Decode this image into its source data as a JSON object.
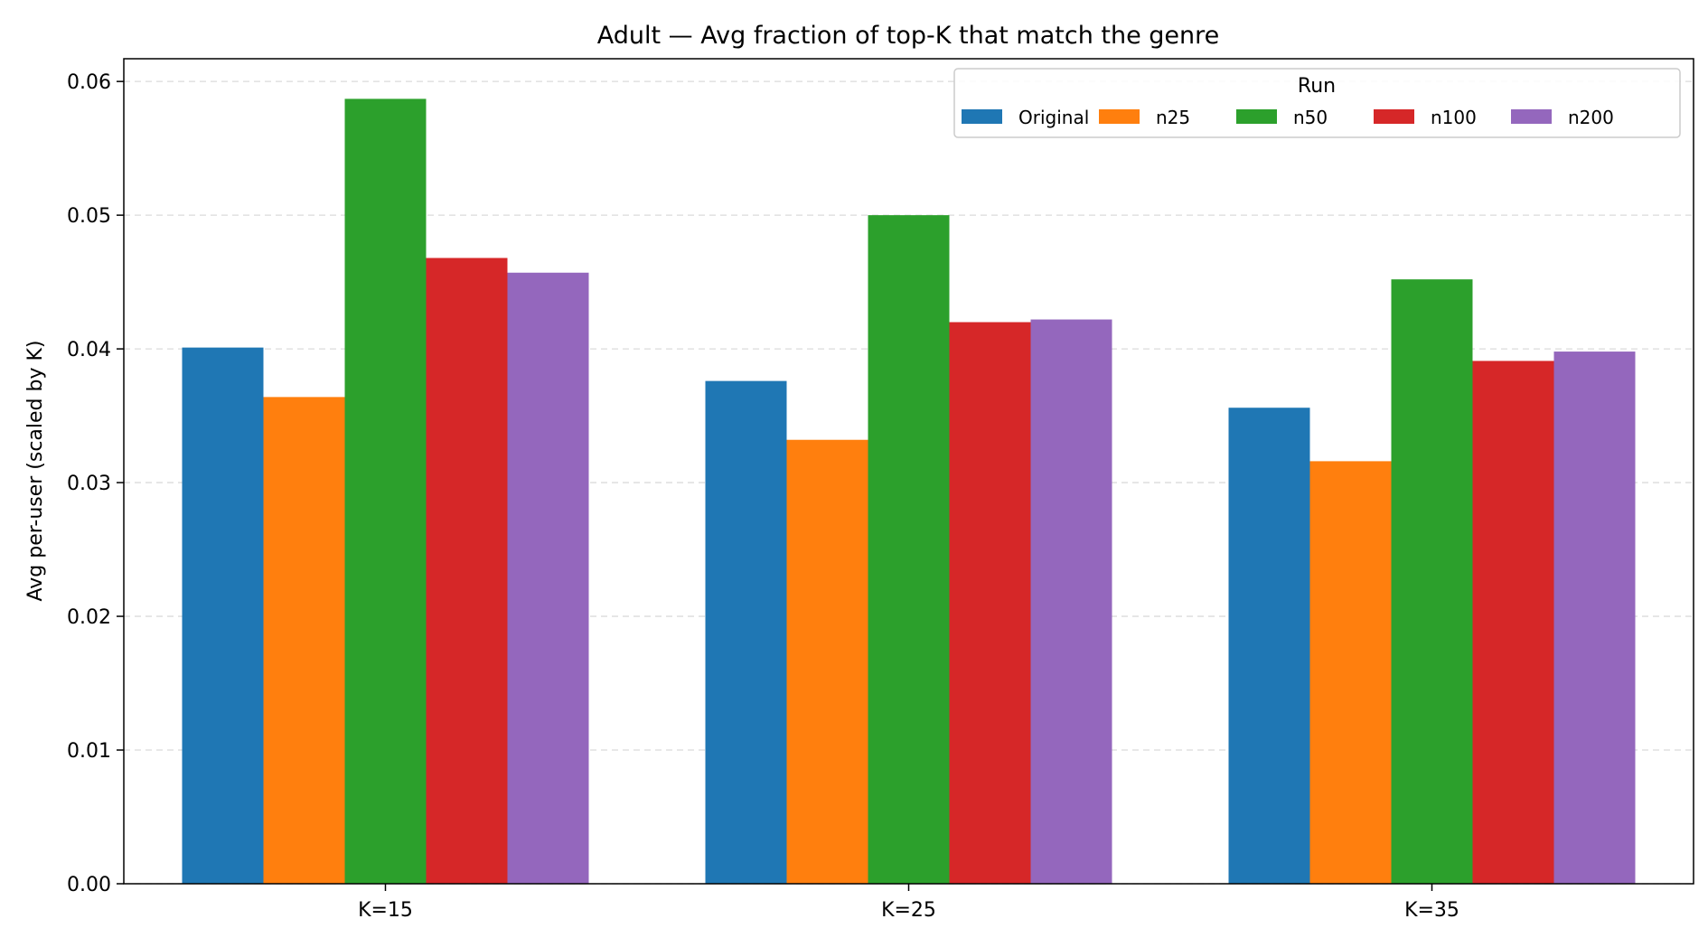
{
  "chart_data": {
    "type": "bar",
    "title": "Adult — Avg fraction of top-K that match the genre",
    "xlabel": "",
    "ylabel": "Avg per-user (scaled by K)",
    "categories": [
      "K=15",
      "K=25",
      "K=35"
    ],
    "ylim": [
      0,
      0.0617
    ],
    "yticks": [
      "0.00",
      "0.01",
      "0.02",
      "0.03",
      "0.04",
      "0.05",
      "0.06"
    ],
    "grid": "y-dashed",
    "legend": {
      "title": "Run",
      "placement": "top-right"
    },
    "series": [
      {
        "name": "Original",
        "color": "#1f77b4",
        "values": [
          0.0401,
          0.0376,
          0.0356
        ]
      },
      {
        "name": "n25",
        "color": "#ff7f0e",
        "values": [
          0.0364,
          0.0332,
          0.0316
        ]
      },
      {
        "name": "n50",
        "color": "#2ca02c",
        "values": [
          0.0587,
          0.05,
          0.0452
        ]
      },
      {
        "name": "n100",
        "color": "#d62728",
        "values": [
          0.0468,
          0.042,
          0.0391
        ]
      },
      {
        "name": "n200",
        "color": "#9467bd",
        "values": [
          0.0457,
          0.0422,
          0.0398
        ]
      }
    ]
  }
}
